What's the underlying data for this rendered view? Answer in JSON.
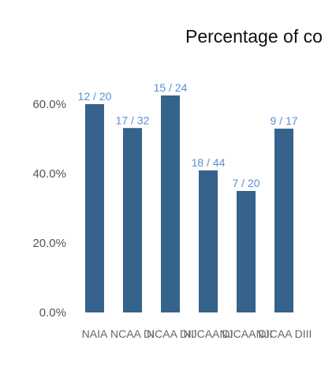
{
  "chart_data": {
    "type": "bar",
    "title": "Percentage of co",
    "xlabel": "",
    "ylabel": "",
    "ylim": [
      0,
      0.7
    ],
    "y_ticks": [
      {
        "value": 0.0,
        "label": "0.0%"
      },
      {
        "value": 0.2,
        "label": "20.0%"
      },
      {
        "value": 0.4,
        "label": "40.0%"
      },
      {
        "value": 0.6,
        "label": "60.0%"
      }
    ],
    "grid": false,
    "legend": "none",
    "categories": [
      "NAIA",
      "NCAA DI",
      "NCAA DII",
      "NJCAA DI",
      "NJCAA DII",
      "NJCAA DIII"
    ],
    "tick_labels": [
      "NAIA",
      "NCAA DI",
      "NCAA DII",
      "NJCAA DI",
      "NJCAA DII",
      "NJCAA DIII"
    ],
    "values": [
      0.6,
      0.53125,
      0.625,
      0.409091,
      0.35,
      0.529412
    ],
    "data_labels": [
      "12  /  20",
      "17  /  32",
      "15  /  24",
      "18  /  44",
      "7  /  20",
      "9  /  17"
    ],
    "colors": {
      "bar": "#35638b",
      "data_label": "#5b8fd6",
      "axis_text": "#555555",
      "title": "#111111"
    }
  }
}
